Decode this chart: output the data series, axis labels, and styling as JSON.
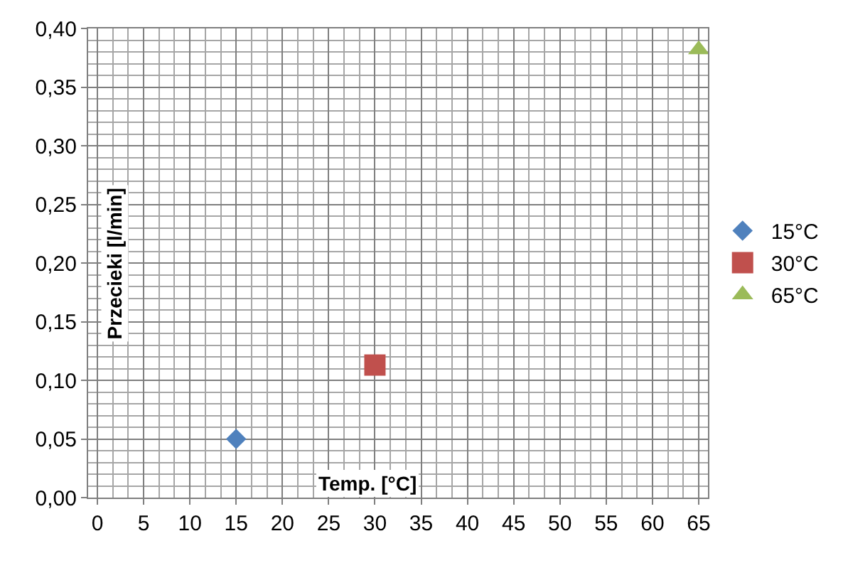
{
  "chart_data": {
    "type": "scatter",
    "xlabel": "Temp. [°C]",
    "ylabel": "Przecieki [l/min]",
    "series": [
      {
        "name": "15°C",
        "color": "#4f81bd",
        "marker": "diamond",
        "x": [
          15
        ],
        "values": [
          0.05
        ]
      },
      {
        "name": "30°C",
        "color": "#c0504d",
        "marker": "square",
        "x": [
          30
        ],
        "values": [
          0.113
        ]
      },
      {
        "name": "65°C",
        "color": "#9bbb59",
        "marker": "triangle",
        "x": [
          65
        ],
        "values": [
          0.382
        ]
      }
    ],
    "xlim": [
      -1,
      66
    ],
    "xticks": [
      0,
      5,
      10,
      15,
      20,
      25,
      30,
      35,
      40,
      45,
      50,
      55,
      60,
      65
    ],
    "ylim": [
      0,
      0.4
    ],
    "yticks": [
      {
        "value": 0,
        "label": "0,00"
      },
      {
        "value": 0.05,
        "label": "0,05"
      },
      {
        "value": 0.1,
        "label": "0,10"
      },
      {
        "value": 0.15,
        "label": "0,15"
      },
      {
        "value": 0.2,
        "label": "0,20"
      },
      {
        "value": 0.25,
        "label": "0,25"
      },
      {
        "value": 0.3,
        "label": "0,30"
      },
      {
        "value": 0.35,
        "label": "0,35"
      },
      {
        "value": 0.4,
        "label": "0,40"
      }
    ],
    "grid": true,
    "legend": "right"
  }
}
